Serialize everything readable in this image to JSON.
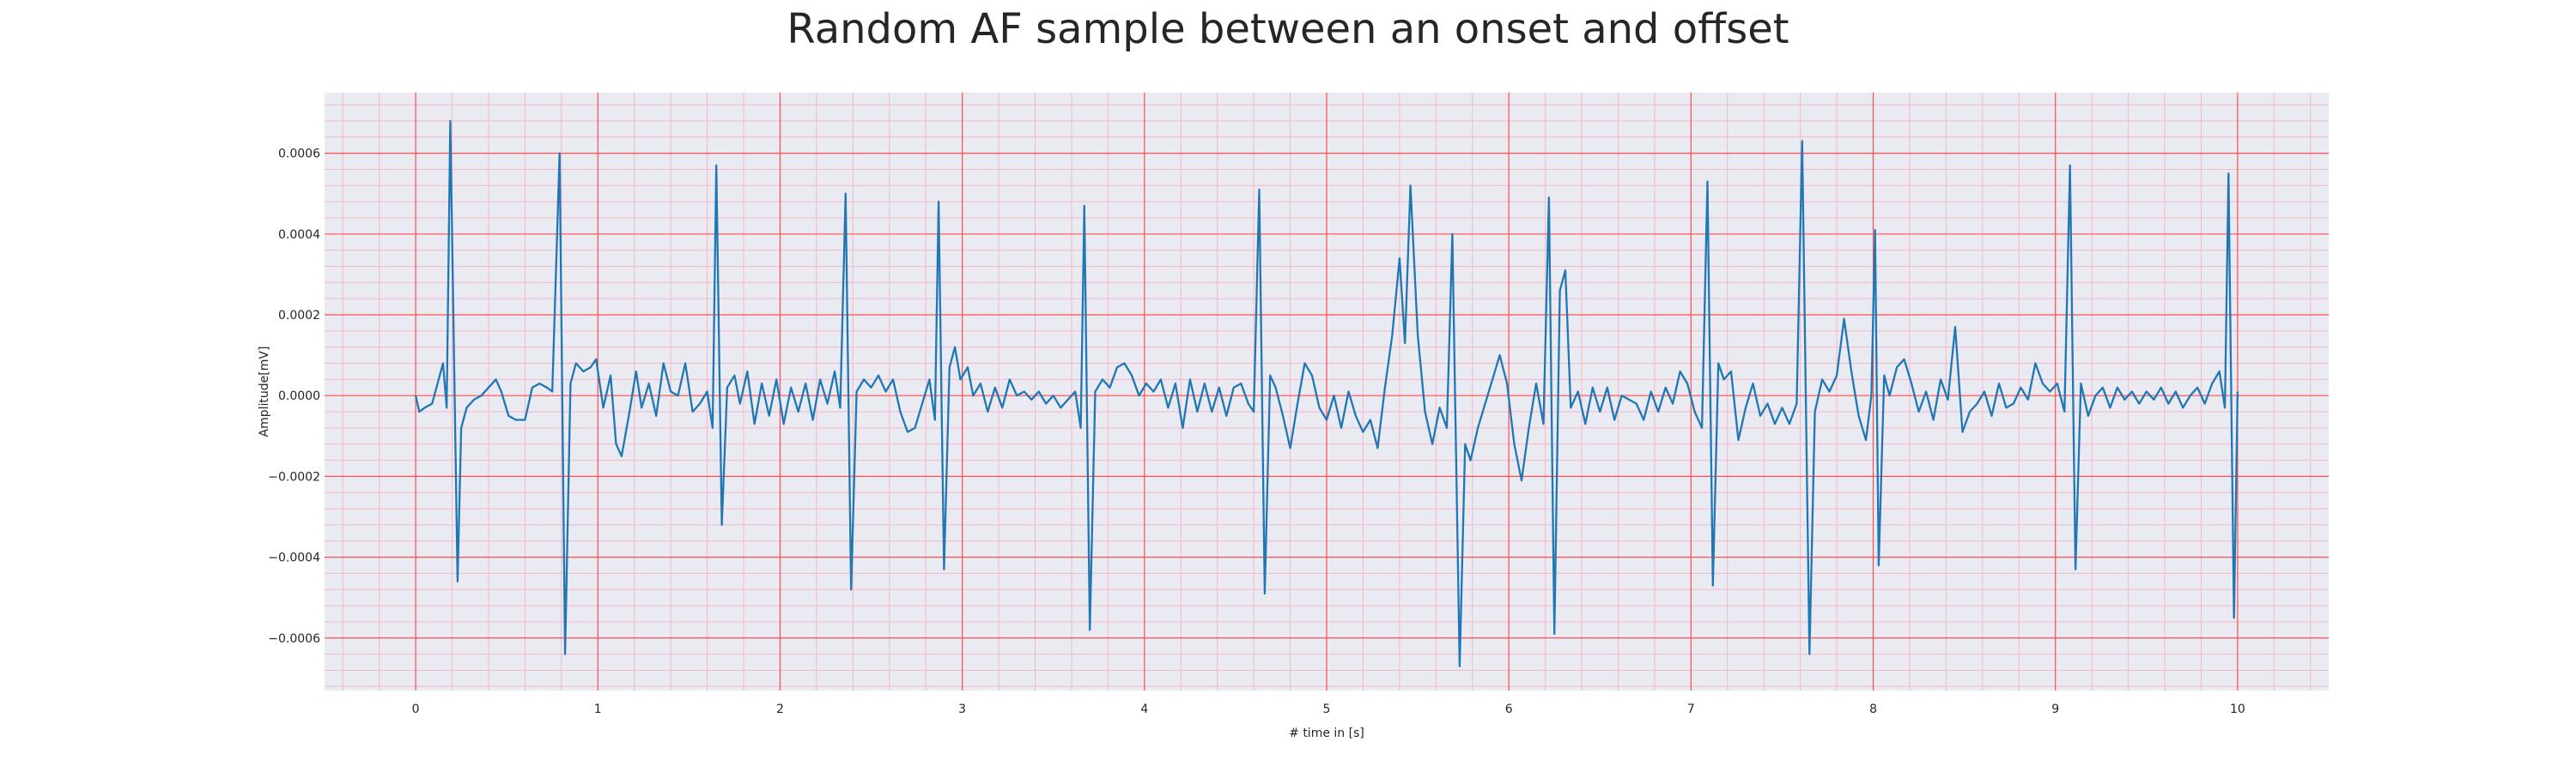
{
  "chart_data": {
    "type": "line",
    "title": "Random AF sample between an onset and offset",
    "xlabel": "# time in [s]",
    "ylabel": "Amplitude[mV]",
    "xlim": [
      -0.5,
      10.5
    ],
    "ylim": [
      -0.00073,
      0.00075
    ],
    "xticks": [
      0,
      1,
      2,
      3,
      4,
      5,
      6,
      7,
      8,
      9,
      10
    ],
    "yticks": [
      -0.0006,
      -0.0004,
      -0.0002,
      0.0,
      0.0002,
      0.0004,
      0.0006
    ],
    "ytick_labels": [
      "−0.0006",
      "−0.0004",
      "−0.0002",
      "0.0000",
      "0.0002",
      "0.0004",
      "0.0006"
    ],
    "grid": true,
    "minor_grid": true,
    "plot_background": "#eaeaf2",
    "major_grid_color": "#ff4d4d",
    "minor_grid_color": "#f4b8c4",
    "series": [
      {
        "color": "#1f77b4",
        "points": [
          [
            0.0,
            0.0
          ],
          [
            0.02,
            -4e-05
          ],
          [
            0.05,
            -3e-05
          ],
          [
            0.09,
            -2e-05
          ],
          [
            0.12,
            3e-05
          ],
          [
            0.15,
            8e-05
          ],
          [
            0.17,
            -3e-05
          ],
          [
            0.19,
            0.00068
          ],
          [
            0.23,
            -0.00046
          ],
          [
            0.25,
            -8e-05
          ],
          [
            0.28,
            -3e-05
          ],
          [
            0.32,
            -1e-05
          ],
          [
            0.36,
            0.0
          ],
          [
            0.4,
            2e-05
          ],
          [
            0.44,
            4e-05
          ],
          [
            0.47,
            1e-05
          ],
          [
            0.51,
            -5e-05
          ],
          [
            0.55,
            -6e-05
          ],
          [
            0.6,
            -6e-05
          ],
          [
            0.64,
            2e-05
          ],
          [
            0.68,
            3e-05
          ],
          [
            0.72,
            2e-05
          ],
          [
            0.75,
            1e-05
          ],
          [
            0.79,
            0.0006
          ],
          [
            0.82,
            -0.00064
          ],
          [
            0.85,
            3e-05
          ],
          [
            0.88,
            8e-05
          ],
          [
            0.92,
            6e-05
          ],
          [
            0.96,
            7e-05
          ],
          [
            0.99,
            9e-05
          ],
          [
            1.03,
            -3e-05
          ],
          [
            1.07,
            5e-05
          ],
          [
            1.1,
            -0.00012
          ],
          [
            1.13,
            -0.00015
          ],
          [
            1.17,
            -5e-05
          ],
          [
            1.21,
            6e-05
          ],
          [
            1.24,
            -3e-05
          ],
          [
            1.28,
            3e-05
          ],
          [
            1.32,
            -5e-05
          ],
          [
            1.36,
            8e-05
          ],
          [
            1.4,
            1e-05
          ],
          [
            1.44,
            0.0
          ],
          [
            1.48,
            8e-05
          ],
          [
            1.52,
            -4e-05
          ],
          [
            1.56,
            -2e-05
          ],
          [
            1.6,
            1e-05
          ],
          [
            1.63,
            -8e-05
          ],
          [
            1.65,
            0.00057
          ],
          [
            1.68,
            -0.00032
          ],
          [
            1.71,
            2e-05
          ],
          [
            1.75,
            5e-05
          ],
          [
            1.78,
            -2e-05
          ],
          [
            1.82,
            6e-05
          ],
          [
            1.86,
            -7e-05
          ],
          [
            1.9,
            3e-05
          ],
          [
            1.94,
            -5e-05
          ],
          [
            1.98,
            4e-05
          ],
          [
            2.02,
            -7e-05
          ],
          [
            2.06,
            2e-05
          ],
          [
            2.1,
            -4e-05
          ],
          [
            2.14,
            3e-05
          ],
          [
            2.18,
            -6e-05
          ],
          [
            2.22,
            4e-05
          ],
          [
            2.26,
            -2e-05
          ],
          [
            2.3,
            6e-05
          ],
          [
            2.33,
            -3e-05
          ],
          [
            2.36,
            0.0005
          ],
          [
            2.39,
            -0.00048
          ],
          [
            2.42,
            1e-05
          ],
          [
            2.46,
            4e-05
          ],
          [
            2.5,
            2e-05
          ],
          [
            2.54,
            5e-05
          ],
          [
            2.58,
            1e-05
          ],
          [
            2.62,
            4e-05
          ],
          [
            2.66,
            -4e-05
          ],
          [
            2.7,
            -9e-05
          ],
          [
            2.74,
            -8e-05
          ],
          [
            2.78,
            -2e-05
          ],
          [
            2.82,
            4e-05
          ],
          [
            2.85,
            -6e-05
          ],
          [
            2.87,
            0.00048
          ],
          [
            2.9,
            -0.00043
          ],
          [
            2.93,
            7e-05
          ],
          [
            2.96,
            0.00012
          ],
          [
            2.99,
            4e-05
          ],
          [
            3.03,
            7e-05
          ],
          [
            3.06,
            0.0
          ],
          [
            3.1,
            3e-05
          ],
          [
            3.14,
            -4e-05
          ],
          [
            3.18,
            2e-05
          ],
          [
            3.22,
            -3e-05
          ],
          [
            3.26,
            4e-05
          ],
          [
            3.3,
            0.0
          ],
          [
            3.34,
            1e-05
          ],
          [
            3.38,
            -1e-05
          ],
          [
            3.42,
            1e-05
          ],
          [
            3.46,
            -2e-05
          ],
          [
            3.5,
            0.0
          ],
          [
            3.54,
            -3e-05
          ],
          [
            3.58,
            -1e-05
          ],
          [
            3.62,
            1e-05
          ],
          [
            3.65,
            -8e-05
          ],
          [
            3.67,
            0.00047
          ],
          [
            3.7,
            -0.00058
          ],
          [
            3.73,
            1e-05
          ],
          [
            3.77,
            4e-05
          ],
          [
            3.81,
            2e-05
          ],
          [
            3.85,
            7e-05
          ],
          [
            3.89,
            8e-05
          ],
          [
            3.93,
            5e-05
          ],
          [
            3.97,
            0.0
          ],
          [
            4.01,
            3e-05
          ],
          [
            4.05,
            1e-05
          ],
          [
            4.09,
            4e-05
          ],
          [
            4.13,
            -3e-05
          ],
          [
            4.17,
            3e-05
          ],
          [
            4.21,
            -8e-05
          ],
          [
            4.25,
            4e-05
          ],
          [
            4.29,
            -4e-05
          ],
          [
            4.33,
            3e-05
          ],
          [
            4.37,
            -4e-05
          ],
          [
            4.41,
            2e-05
          ],
          [
            4.45,
            -5e-05
          ],
          [
            4.49,
            2e-05
          ],
          [
            4.53,
            3e-05
          ],
          [
            4.57,
            -2e-05
          ],
          [
            4.6,
            -4e-05
          ],
          [
            4.63,
            0.00051
          ],
          [
            4.66,
            -0.00049
          ],
          [
            4.69,
            5e-05
          ],
          [
            4.72,
            2e-05
          ],
          [
            4.76,
            -5e-05
          ],
          [
            4.8,
            -0.00013
          ],
          [
            4.84,
            -2e-05
          ],
          [
            4.88,
            8e-05
          ],
          [
            4.92,
            5e-05
          ],
          [
            4.96,
            -3e-05
          ],
          [
            5.0,
            -6e-05
          ],
          [
            5.04,
            0.0
          ],
          [
            5.08,
            -8e-05
          ],
          [
            5.12,
            1e-05
          ],
          [
            5.16,
            -5e-05
          ],
          [
            5.2,
            -9e-05
          ],
          [
            5.24,
            -6e-05
          ],
          [
            5.28,
            -0.00013
          ],
          [
            5.32,
            2e-05
          ],
          [
            5.36,
            0.00015
          ],
          [
            5.4,
            0.00034
          ],
          [
            5.43,
            0.00013
          ],
          [
            5.46,
            0.00052
          ],
          [
            5.5,
            0.00015
          ],
          [
            5.54,
            -4e-05
          ],
          [
            5.58,
            -0.00012
          ],
          [
            5.62,
            -3e-05
          ],
          [
            5.66,
            -8e-05
          ],
          [
            5.69,
            0.0004
          ],
          [
            5.73,
            -0.00067
          ],
          [
            5.76,
            -0.00012
          ],
          [
            5.79,
            -0.00016
          ],
          [
            5.83,
            -8e-05
          ],
          [
            5.87,
            -2e-05
          ],
          [
            5.91,
            4e-05
          ],
          [
            5.95,
            0.0001
          ],
          [
            5.99,
            3e-05
          ],
          [
            6.03,
            -0.00012
          ],
          [
            6.07,
            -0.00021
          ],
          [
            6.11,
            -8e-05
          ],
          [
            6.15,
            3e-05
          ],
          [
            6.19,
            -7e-05
          ],
          [
            6.22,
            0.00049
          ],
          [
            6.25,
            -0.00059
          ],
          [
            6.28,
            0.00026
          ],
          [
            6.31,
            0.00031
          ],
          [
            6.34,
            -3e-05
          ],
          [
            6.38,
            1e-05
          ],
          [
            6.42,
            -7e-05
          ],
          [
            6.46,
            2e-05
          ],
          [
            6.5,
            -4e-05
          ],
          [
            6.54,
            2e-05
          ],
          [
            6.58,
            -6e-05
          ],
          [
            6.62,
            0.0
          ],
          [
            6.66,
            -1e-05
          ],
          [
            6.7,
            -2e-05
          ],
          [
            6.74,
            -6e-05
          ],
          [
            6.78,
            1e-05
          ],
          [
            6.82,
            -4e-05
          ],
          [
            6.86,
            2e-05
          ],
          [
            6.9,
            -2e-05
          ],
          [
            6.94,
            6e-05
          ],
          [
            6.98,
            3e-05
          ],
          [
            7.02,
            -4e-05
          ],
          [
            7.06,
            -8e-05
          ],
          [
            7.09,
            0.00053
          ],
          [
            7.12,
            -0.00047
          ],
          [
            7.15,
            8e-05
          ],
          [
            7.18,
            4e-05
          ],
          [
            7.22,
            6e-05
          ],
          [
            7.26,
            -0.00011
          ],
          [
            7.3,
            -3e-05
          ],
          [
            7.34,
            3e-05
          ],
          [
            7.38,
            -5e-05
          ],
          [
            7.42,
            -2e-05
          ],
          [
            7.46,
            -7e-05
          ],
          [
            7.5,
            -3e-05
          ],
          [
            7.54,
            -7e-05
          ],
          [
            7.58,
            -2e-05
          ],
          [
            7.61,
            0.00063
          ],
          [
            7.65,
            -0.00064
          ],
          [
            7.68,
            -4e-05
          ],
          [
            7.72,
            4e-05
          ],
          [
            7.76,
            1e-05
          ],
          [
            7.8,
            5e-05
          ],
          [
            7.84,
            0.00019
          ],
          [
            7.88,
            6e-05
          ],
          [
            7.92,
            -5e-05
          ],
          [
            7.96,
            -0.00011
          ],
          [
            7.99,
            0.0
          ],
          [
            8.01,
            0.00041
          ],
          [
            8.03,
            -0.00042
          ],
          [
            8.06,
            5e-05
          ],
          [
            8.09,
            0.0
          ],
          [
            8.13,
            7e-05
          ],
          [
            8.17,
            9e-05
          ],
          [
            8.21,
            3e-05
          ],
          [
            8.25,
            -4e-05
          ],
          [
            8.29,
            1e-05
          ],
          [
            8.33,
            -6e-05
          ],
          [
            8.37,
            4e-05
          ],
          [
            8.41,
            -1e-05
          ],
          [
            8.45,
            0.00017
          ],
          [
            8.49,
            -9e-05
          ],
          [
            8.53,
            -4e-05
          ],
          [
            8.57,
            -2e-05
          ],
          [
            8.61,
            1e-05
          ],
          [
            8.65,
            -5e-05
          ],
          [
            8.69,
            3e-05
          ],
          [
            8.73,
            -3e-05
          ],
          [
            8.77,
            -2e-05
          ],
          [
            8.81,
            2e-05
          ],
          [
            8.85,
            -1e-05
          ],
          [
            8.89,
            8e-05
          ],
          [
            8.93,
            3e-05
          ],
          [
            8.97,
            1e-05
          ],
          [
            9.01,
            3e-05
          ],
          [
            9.05,
            -4e-05
          ],
          [
            9.08,
            0.00057
          ],
          [
            9.11,
            -0.00043
          ],
          [
            9.14,
            3e-05
          ],
          [
            9.18,
            -5e-05
          ],
          [
            9.22,
            0.0
          ],
          [
            9.26,
            2e-05
          ],
          [
            9.3,
            -3e-05
          ],
          [
            9.34,
            2e-05
          ],
          [
            9.38,
            -1e-05
          ],
          [
            9.42,
            1e-05
          ],
          [
            9.46,
            -2e-05
          ],
          [
            9.5,
            1e-05
          ],
          [
            9.54,
            -1e-05
          ],
          [
            9.58,
            2e-05
          ],
          [
            9.62,
            -2e-05
          ],
          [
            9.66,
            1e-05
          ],
          [
            9.7,
            -3e-05
          ],
          [
            9.74,
            0.0
          ],
          [
            9.78,
            2e-05
          ],
          [
            9.82,
            -2e-05
          ],
          [
            9.86,
            3e-05
          ],
          [
            9.9,
            6e-05
          ],
          [
            9.93,
            -3e-05
          ],
          [
            9.95,
            0.00055
          ],
          [
            9.98,
            -0.00055
          ],
          [
            10.0,
            1e-05
          ]
        ]
      }
    ]
  }
}
